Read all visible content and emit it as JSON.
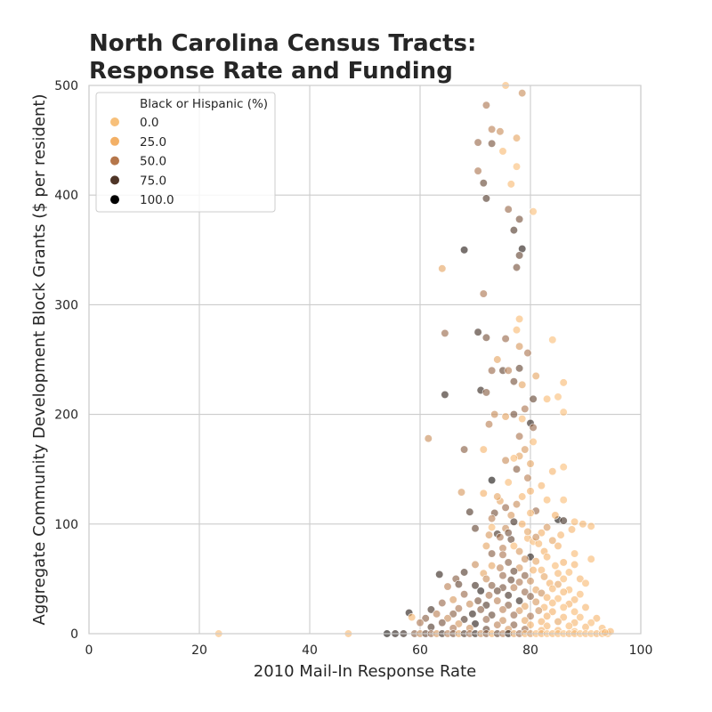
{
  "chart_data": {
    "type": "scatter",
    "title_line1": "North Carolina Census Tracts:",
    "title_line2": "Response Rate and Funding",
    "xlabel": "2010 Mail-In Response Rate",
    "ylabel": "Aggregate Community Development Block Grants ($ per resident)",
    "xlim": [
      0,
      100
    ],
    "ylim": [
      0,
      500
    ],
    "xticks": [
      "0",
      "20",
      "40",
      "60",
      "80",
      "100"
    ],
    "yticks": [
      "0",
      "100",
      "200",
      "300",
      "400",
      "500"
    ],
    "grid": true,
    "legend": {
      "title": "Black or Hispanic (%)",
      "placement": "top-left",
      "entries": [
        {
          "label": "0.0",
          "color": "#f7c07b"
        },
        {
          "label": "25.0",
          "color": "#f3b066"
        },
        {
          "label": "50.0",
          "color": "#b5764a"
        },
        {
          "label": "75.0",
          "color": "#4e3426"
        },
        {
          "label": "100.0",
          "color": "#000000"
        }
      ]
    },
    "colormap": [
      {
        "at": 0,
        "color": "#ffc87f"
      },
      {
        "at": 25,
        "color": "#f3ad63"
      },
      {
        "at": 50,
        "color": "#a8704a"
      },
      {
        "at": 75,
        "color": "#4a3022"
      },
      {
        "at": 100,
        "color": "#000000"
      }
    ],
    "points": [
      [
        75.5,
        500,
        15
      ],
      [
        78.5,
        493,
        40
      ],
      [
        72,
        482,
        50
      ],
      [
        73,
        460,
        45
      ],
      [
        74.5,
        458,
        40
      ],
      [
        77.5,
        452,
        30
      ],
      [
        70.5,
        448,
        55
      ],
      [
        73,
        447,
        65
      ],
      [
        75,
        440,
        15
      ],
      [
        77.5,
        426,
        10
      ],
      [
        70.5,
        422,
        50
      ],
      [
        71.5,
        411,
        70
      ],
      [
        76.5,
        410,
        15
      ],
      [
        72,
        397,
        75
      ],
      [
        80.5,
        385,
        10
      ],
      [
        76,
        387,
        55
      ],
      [
        78,
        378,
        65
      ],
      [
        77,
        368,
        75
      ],
      [
        78.5,
        351,
        90
      ],
      [
        68,
        350,
        90
      ],
      [
        78,
        345,
        70
      ],
      [
        77.5,
        334,
        65
      ],
      [
        64,
        333,
        30
      ],
      [
        71.5,
        310,
        50
      ],
      [
        78,
        287,
        15
      ],
      [
        77.5,
        277,
        15
      ],
      [
        70.5,
        275,
        80
      ],
      [
        64.5,
        274,
        55
      ],
      [
        84,
        268,
        10
      ],
      [
        72,
        270,
        65
      ],
      [
        75.5,
        269,
        55
      ],
      [
        78,
        262,
        35
      ],
      [
        79.5,
        256,
        50
      ],
      [
        74,
        250,
        30
      ],
      [
        78,
        242,
        70
      ],
      [
        73,
        240,
        55
      ],
      [
        75,
        240,
        70
      ],
      [
        76,
        240,
        45
      ],
      [
        81,
        235,
        30
      ],
      [
        77,
        230,
        65
      ],
      [
        86,
        229,
        15
      ],
      [
        78.5,
        227,
        30
      ],
      [
        71,
        222,
        85
      ],
      [
        72,
        220,
        60
      ],
      [
        64.5,
        218,
        85
      ],
      [
        85,
        216,
        10
      ],
      [
        83,
        214,
        15
      ],
      [
        80.5,
        214,
        70
      ],
      [
        79,
        205,
        50
      ],
      [
        86,
        202,
        10
      ],
      [
        77,
        200,
        65
      ],
      [
        73.5,
        200,
        40
      ],
      [
        75.5,
        198,
        30
      ],
      [
        78.5,
        196,
        15
      ],
      [
        80,
        192,
        85
      ],
      [
        80.5,
        188,
        55
      ],
      [
        72.5,
        191,
        45
      ],
      [
        78,
        180,
        50
      ],
      [
        61.5,
        178,
        40
      ],
      [
        80.5,
        175,
        15
      ],
      [
        68,
        168,
        60
      ],
      [
        79,
        168,
        35
      ],
      [
        71.5,
        168,
        20
      ],
      [
        78,
        162,
        30
      ],
      [
        75.5,
        158,
        40
      ],
      [
        77,
        160,
        15
      ],
      [
        80,
        155,
        30
      ],
      [
        86,
        152,
        10
      ],
      [
        84,
        148,
        20
      ],
      [
        77.5,
        150,
        60
      ],
      [
        79.5,
        142,
        45
      ],
      [
        73,
        140,
        95
      ],
      [
        76,
        138,
        15
      ],
      [
        82,
        135,
        20
      ],
      [
        80,
        130,
        25
      ],
      [
        67.5,
        129,
        35
      ],
      [
        86,
        122,
        10
      ],
      [
        74.5,
        121,
        30
      ],
      [
        77.5,
        118,
        40
      ],
      [
        81,
        112,
        55
      ],
      [
        69,
        111,
        75
      ],
      [
        73.5,
        110,
        65
      ],
      [
        76.5,
        108,
        35
      ],
      [
        85,
        104,
        95
      ],
      [
        86,
        103,
        80
      ],
      [
        88,
        102,
        15
      ],
      [
        89.5,
        100,
        20
      ],
      [
        91,
        98,
        15
      ],
      [
        78.5,
        100,
        25
      ],
      [
        75.5,
        96,
        40
      ],
      [
        70,
        96,
        70
      ],
      [
        73,
        97,
        15
      ],
      [
        83,
        97,
        35
      ],
      [
        82,
        92,
        25
      ],
      [
        74,
        91,
        80
      ],
      [
        74.5,
        88,
        50
      ],
      [
        76.5,
        86,
        70
      ],
      [
        79.5,
        87,
        20
      ],
      [
        84,
        85,
        30
      ],
      [
        80.5,
        84,
        15
      ],
      [
        81.5,
        82,
        20
      ],
      [
        85,
        80,
        25
      ],
      [
        75,
        78,
        45
      ],
      [
        72,
        80,
        30
      ],
      [
        77,
        80,
        15
      ],
      [
        78,
        75,
        35
      ],
      [
        82.5,
        75,
        25
      ],
      [
        88,
        73,
        15
      ],
      [
        73,
        73,
        60
      ],
      [
        75,
        72,
        50
      ],
      [
        80,
        70,
        90
      ],
      [
        79,
        68,
        40
      ],
      [
        83,
        70,
        20
      ],
      [
        91,
        68,
        15
      ],
      [
        76,
        65,
        60
      ],
      [
        81,
        66,
        30
      ],
      [
        86,
        65,
        25
      ],
      [
        88,
        63,
        20
      ],
      [
        70,
        63,
        40
      ],
      [
        73,
        62,
        30
      ],
      [
        74.5,
        60,
        45
      ],
      [
        78,
        60,
        35
      ],
      [
        84.5,
        62,
        15
      ],
      [
        80.5,
        58,
        25
      ],
      [
        82,
        58,
        20
      ],
      [
        77,
        57,
        70
      ],
      [
        85,
        55,
        20
      ],
      [
        87,
        56,
        15
      ],
      [
        63.5,
        54,
        85
      ],
      [
        68,
        56,
        75
      ],
      [
        71.5,
        55,
        30
      ],
      [
        75,
        53,
        55
      ],
      [
        79,
        53,
        60
      ],
      [
        82.5,
        52,
        30
      ],
      [
        86,
        50,
        15
      ],
      [
        89,
        50,
        20
      ],
      [
        66.5,
        50,
        60
      ],
      [
        72,
        50,
        40
      ],
      [
        76.5,
        49,
        70
      ],
      [
        78,
        47,
        50
      ],
      [
        80,
        48,
        40
      ],
      [
        83.5,
        46,
        25
      ],
      [
        85,
        45,
        30
      ],
      [
        90,
        46,
        15
      ],
      [
        67,
        45,
        70
      ],
      [
        70,
        44,
        80
      ],
      [
        73,
        44,
        60
      ],
      [
        75,
        42,
        65
      ],
      [
        77,
        42,
        45
      ],
      [
        81,
        40,
        30
      ],
      [
        84,
        41,
        20
      ],
      [
        87,
        40,
        15
      ],
      [
        65,
        43,
        45
      ],
      [
        71,
        39,
        90
      ],
      [
        74,
        39,
        70
      ],
      [
        79,
        38,
        55
      ],
      [
        82,
        37,
        40
      ],
      [
        86,
        38,
        20
      ],
      [
        89,
        36,
        15
      ],
      [
        68,
        36,
        55
      ],
      [
        72.5,
        35,
        50
      ],
      [
        76,
        35,
        80
      ],
      [
        80,
        34,
        60
      ],
      [
        83,
        33,
        25
      ],
      [
        85,
        32,
        15
      ],
      [
        88,
        31,
        20
      ],
      [
        66,
        31,
        35
      ],
      [
        70.5,
        30,
        65
      ],
      [
        74,
        30,
        45
      ],
      [
        78,
        30,
        85
      ],
      [
        81,
        29,
        35
      ],
      [
        84,
        28,
        20
      ],
      [
        87,
        27,
        25
      ],
      [
        64,
        28,
        55
      ],
      [
        69,
        27,
        40
      ],
      [
        72,
        26,
        75
      ],
      [
        76,
        26,
        60
      ],
      [
        79,
        25,
        30
      ],
      [
        82.5,
        24,
        20
      ],
      [
        86,
        24,
        15
      ],
      [
        90,
        24,
        20
      ],
      [
        62,
        22,
        80
      ],
      [
        67,
        23,
        50
      ],
      [
        71,
        22,
        60
      ],
      [
        75,
        22,
        45
      ],
      [
        78,
        21,
        35
      ],
      [
        81.5,
        21,
        40
      ],
      [
        84,
        20,
        25
      ],
      [
        88,
        20,
        15
      ],
      [
        58,
        19,
        90
      ],
      [
        63,
        18,
        45
      ],
      [
        66,
        18,
        60
      ],
      [
        69.5,
        18,
        85
      ],
      [
        73,
        17,
        70
      ],
      [
        77,
        17,
        55
      ],
      [
        80,
        16,
        50
      ],
      [
        83,
        16,
        25
      ],
      [
        86,
        15,
        20
      ],
      [
        89,
        15,
        15
      ],
      [
        92,
        14,
        20
      ],
      [
        58.5,
        15,
        20
      ],
      [
        61,
        14,
        60
      ],
      [
        65,
        14,
        40
      ],
      [
        68,
        13,
        75
      ],
      [
        72,
        13,
        55
      ],
      [
        75,
        12,
        40
      ],
      [
        79,
        12,
        30
      ],
      [
        82,
        11,
        25
      ],
      [
        85,
        11,
        30
      ],
      [
        88,
        10,
        20
      ],
      [
        91,
        10,
        15
      ],
      [
        60,
        10,
        50
      ],
      [
        64,
        10,
        65
      ],
      [
        67,
        9,
        35
      ],
      [
        70,
        9,
        90
      ],
      [
        74,
        8,
        45
      ],
      [
        77,
        8,
        60
      ],
      [
        80,
        8,
        25
      ],
      [
        83,
        7,
        20
      ],
      [
        87,
        7,
        15
      ],
      [
        90,
        6,
        20
      ],
      [
        93,
        5,
        15
      ],
      [
        62,
        6,
        75
      ],
      [
        66,
        5,
        50
      ],
      [
        69,
        5,
        40
      ],
      [
        72,
        4,
        70
      ],
      [
        76,
        4,
        35
      ],
      [
        79,
        4,
        55
      ],
      [
        82,
        3,
        25
      ],
      [
        85,
        3,
        20
      ],
      [
        88,
        2,
        15
      ],
      [
        23.5,
        0,
        10
      ],
      [
        47,
        0,
        15
      ],
      [
        54,
        0,
        95
      ],
      [
        55.5,
        0,
        90
      ],
      [
        57,
        0,
        85
      ],
      [
        59,
        0,
        60
      ],
      [
        60,
        0,
        40
      ],
      [
        61,
        0,
        70
      ],
      [
        62,
        0,
        55
      ],
      [
        63,
        0,
        35
      ],
      [
        64,
        0,
        80
      ],
      [
        65,
        0,
        45
      ],
      [
        66,
        0,
        65
      ],
      [
        67,
        0,
        30
      ],
      [
        68,
        0,
        75
      ],
      [
        69,
        0,
        50
      ],
      [
        70,
        0,
        85
      ],
      [
        71,
        0,
        40
      ],
      [
        72,
        0,
        60
      ],
      [
        73,
        0,
        25
      ],
      [
        74,
        0,
        70
      ],
      [
        75,
        0,
        45
      ],
      [
        76,
        0,
        90
      ],
      [
        77,
        0,
        30
      ],
      [
        78,
        0,
        55
      ],
      [
        79,
        0,
        20
      ],
      [
        80,
        0,
        35
      ],
      [
        81,
        0,
        15
      ],
      [
        82,
        0,
        25
      ],
      [
        83,
        0,
        10
      ],
      [
        84,
        0,
        20
      ],
      [
        85,
        0,
        15
      ],
      [
        86,
        0,
        10
      ],
      [
        87,
        0,
        20
      ],
      [
        88,
        0,
        15
      ],
      [
        89,
        0,
        10
      ],
      [
        90,
        0,
        15
      ],
      [
        91,
        0,
        10
      ],
      [
        92,
        0,
        20
      ],
      [
        93,
        0,
        15
      ],
      [
        94,
        0,
        10
      ],
      [
        94.5,
        2,
        20
      ],
      [
        93.5,
        1,
        15
      ],
      [
        71.5,
        128,
        25
      ],
      [
        74,
        125,
        30
      ],
      [
        78.5,
        125,
        20
      ],
      [
        83,
        122,
        15
      ],
      [
        75.5,
        115,
        55
      ],
      [
        80,
        110,
        20
      ],
      [
        73,
        105,
        45
      ],
      [
        84.5,
        108,
        25
      ],
      [
        77,
        102,
        80
      ],
      [
        87.5,
        95,
        20
      ],
      [
        79.5,
        93,
        30
      ],
      [
        72.5,
        90,
        35
      ],
      [
        85.5,
        90,
        20
      ],
      [
        76,
        92,
        65
      ],
      [
        81,
        88,
        40
      ]
    ]
  }
}
